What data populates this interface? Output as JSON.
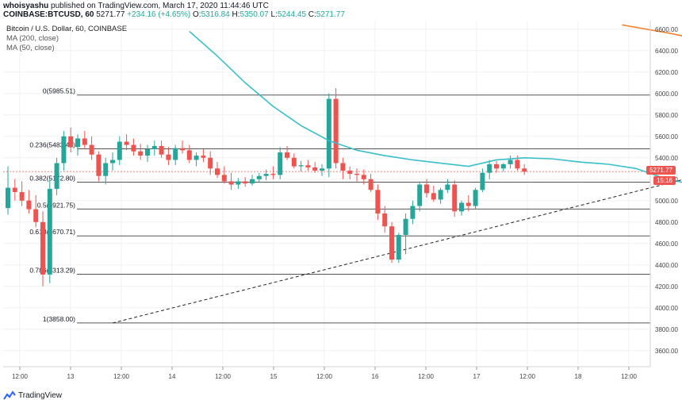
{
  "header": {
    "user": "whoisyashu",
    "published": "published on TradingView.com, March 17, 2020 11:44:46 UTC",
    "symbol": "COINBASE:BTCUSD, 60",
    "last": "5271.77",
    "change": "+234.16 (+4.65%)",
    "o_label": "O:",
    "o_value": "5316.84",
    "h_label": "H:",
    "h_value": "5350.07",
    "l_label": "L:",
    "l_value": "5244.45",
    "c_label": "C:",
    "c_value": "5271.77"
  },
  "legend": {
    "title": "Bitcoin / U.S. Dollar, 60, COINBASE",
    "ma200": "MA (200, close)",
    "ma50": "MA (50, close)"
  },
  "price_tag": {
    "value": "5271.77",
    "timer": "15:16"
  },
  "footer": {
    "brand": "TradingView"
  },
  "colors": {
    "up": "#26a69a",
    "down": "#ef5350",
    "ma50": "#38bfca",
    "ma200": "#f57f2a",
    "grid": "#eef0f3",
    "fib": "#555555"
  },
  "chart_data": {
    "type": "candlestick",
    "y_axis_ticks": [
      3600,
      3800,
      4000,
      4200,
      4400,
      4600,
      4800,
      5000,
      5200,
      5400,
      5600,
      5800,
      6000,
      6200,
      6400,
      6600
    ],
    "ylim": [
      3450,
      6680
    ],
    "x_axis_labels": [
      "12:00",
      "13",
      "12:00",
      "14",
      "12:00",
      "15",
      "12:00",
      "16",
      "12:00",
      "17",
      "12:00",
      "18",
      "12:00"
    ],
    "fib_levels": [
      {
        "label": "0(5985.51)",
        "value": 5985.51
      },
      {
        "label": "0.236(5483.42)",
        "value": 5483.42
      },
      {
        "label": "0.382(5172.80)",
        "value": 5172.8
      },
      {
        "label": "0.5(4921.75)",
        "value": 4921.75
      },
      {
        "label": "0.618(4670.71)",
        "value": 4670.71
      },
      {
        "label": "0.786(4313.29)",
        "value": 4313.29
      },
      {
        "label": "1(3858.00)",
        "value": 3858.0
      }
    ],
    "trendline": {
      "start": {
        "x": 15,
        "price": 3858
      },
      "end": {
        "x": 133,
        "price": 5790
      }
    },
    "ma200": [
      [
        88,
        6640
      ],
      [
        95,
        6560
      ],
      [
        100,
        6490
      ],
      [
        108,
        6400
      ],
      [
        113,
        6330
      ]
    ],
    "ma50": [
      [
        26,
        6580
      ],
      [
        30,
        6350
      ],
      [
        34,
        6100
      ],
      [
        38,
        5880
      ],
      [
        42,
        5700
      ],
      [
        46,
        5560
      ],
      [
        50,
        5470
      ],
      [
        54,
        5420
      ],
      [
        58,
        5380
      ],
      [
        62,
        5350
      ],
      [
        66,
        5320
      ],
      [
        70,
        5380
      ],
      [
        74,
        5400
      ],
      [
        78,
        5390
      ],
      [
        82,
        5360
      ],
      [
        86,
        5340
      ],
      [
        90,
        5300
      ],
      [
        94,
        5210
      ],
      [
        98,
        5150
      ],
      [
        102,
        5140
      ],
      [
        106,
        5160
      ],
      [
        108,
        5160
      ]
    ],
    "candles": [
      [
        4930,
        5320,
        4870,
        5120
      ],
      [
        5120,
        5200,
        5000,
        5080
      ],
      [
        5080,
        5180,
        4950,
        5000
      ],
      [
        5000,
        5100,
        4880,
        4920
      ],
      [
        4920,
        5050,
        4750,
        4800
      ],
      [
        4800,
        4900,
        4200,
        4310
      ],
      [
        4310,
        5200,
        4230,
        5110
      ],
      [
        5110,
        5400,
        5050,
        5350
      ],
      [
        5350,
        5650,
        5280,
        5600
      ],
      [
        5600,
        5680,
        5450,
        5500
      ],
      [
        5500,
        5620,
        5420,
        5580
      ],
      [
        5580,
        5650,
        5480,
        5520
      ],
      [
        5520,
        5600,
        5380,
        5430
      ],
      [
        5430,
        5460,
        5180,
        5230
      ],
      [
        5230,
        5400,
        5150,
        5350
      ],
      [
        5350,
        5450,
        5280,
        5380
      ],
      [
        5380,
        5600,
        5330,
        5550
      ],
      [
        5550,
        5620,
        5470,
        5520
      ],
      [
        5520,
        5580,
        5420,
        5460
      ],
      [
        5460,
        5530,
        5380,
        5420
      ],
      [
        5420,
        5520,
        5360,
        5480
      ],
      [
        5480,
        5560,
        5420,
        5510
      ],
      [
        5510,
        5560,
        5400,
        5430
      ],
      [
        5430,
        5500,
        5330,
        5380
      ],
      [
        5380,
        5520,
        5330,
        5490
      ],
      [
        5490,
        5560,
        5440,
        5470
      ],
      [
        5470,
        5520,
        5350,
        5380
      ],
      [
        5380,
        5450,
        5320,
        5420
      ],
      [
        5420,
        5480,
        5360,
        5400
      ],
      [
        5400,
        5460,
        5240,
        5300
      ],
      [
        5300,
        5360,
        5210,
        5240
      ],
      [
        5240,
        5320,
        5160,
        5180
      ],
      [
        5180,
        5260,
        5100,
        5150
      ],
      [
        5150,
        5210,
        5110,
        5180
      ],
      [
        5180,
        5220,
        5130,
        5160
      ],
      [
        5160,
        5240,
        5140,
        5200
      ],
      [
        5200,
        5260,
        5170,
        5230
      ],
      [
        5230,
        5290,
        5190,
        5250
      ],
      [
        5250,
        5320,
        5200,
        5240
      ],
      [
        5240,
        5500,
        5200,
        5450
      ],
      [
        5450,
        5510,
        5380,
        5400
      ],
      [
        5400,
        5440,
        5300,
        5320
      ],
      [
        5320,
        5370,
        5270,
        5330
      ],
      [
        5330,
        5380,
        5280,
        5310
      ],
      [
        5310,
        5360,
        5260,
        5280
      ],
      [
        5280,
        5340,
        5230,
        5300
      ],
      [
        5300,
        6000,
        5220,
        5950
      ],
      [
        5950,
        6050,
        5300,
        5350
      ],
      [
        5350,
        5400,
        5200,
        5280
      ],
      [
        5280,
        5320,
        5200,
        5250
      ],
      [
        5250,
        5300,
        5180,
        5240
      ],
      [
        5240,
        5290,
        5150,
        5200
      ],
      [
        5200,
        5250,
        5080,
        5100
      ],
      [
        5100,
        5150,
        4820,
        4880
      ],
      [
        4880,
        4950,
        4700,
        4760
      ],
      [
        4760,
        4800,
        4420,
        4450
      ],
      [
        4450,
        4700,
        4420,
        4680
      ],
      [
        4680,
        4880,
        4500,
        4830
      ],
      [
        4830,
        5000,
        4780,
        4950
      ],
      [
        4950,
        5180,
        4900,
        5150
      ],
      [
        5150,
        5200,
        5030,
        5070
      ],
      [
        5070,
        5140,
        4990,
        5010
      ],
      [
        5010,
        5120,
        4970,
        5100
      ],
      [
        5100,
        5200,
        5070,
        5150
      ],
      [
        5150,
        5190,
        4850,
        4900
      ],
      [
        4900,
        5000,
        4860,
        4980
      ],
      [
        4980,
        5050,
        4900,
        4950
      ],
      [
        4950,
        5120,
        4920,
        5100
      ],
      [
        5100,
        5300,
        5080,
        5260
      ],
      [
        5260,
        5380,
        5200,
        5340
      ],
      [
        5340,
        5370,
        5260,
        5300
      ],
      [
        5300,
        5350,
        5270,
        5340
      ],
      [
        5340,
        5420,
        5300,
        5380
      ],
      [
        5380,
        5420,
        5280,
        5300
      ],
      [
        5300,
        5340,
        5240,
        5270
      ]
    ]
  }
}
